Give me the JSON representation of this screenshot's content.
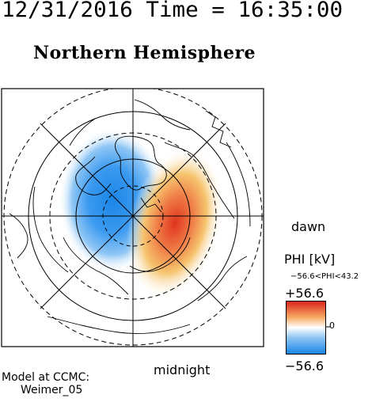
{
  "header": {
    "datetime": "12/31/2016 Time = 16:35:00",
    "hemisphere_title": "Northern Hemisphere"
  },
  "map_labels": {
    "dawn": "dawn",
    "midnight": "midnight"
  },
  "model": {
    "label": "Model at CCMC:",
    "name": "Weimer_05"
  },
  "colorbar": {
    "title": "PHI [kV]",
    "range_text": "−56.6<PHI<43.2",
    "max_label": "+56.6",
    "min_label": "−56.6",
    "zero_label": "0",
    "scale_max": 56.6,
    "scale_min": -56.6,
    "colors": {
      "positive": "#d8261e",
      "negative": "#1a86e6",
      "neutral": "#ffffff"
    }
  },
  "potential_cells": {
    "negative_min_kV": -56.6,
    "positive_max_kV": 43.2
  }
}
